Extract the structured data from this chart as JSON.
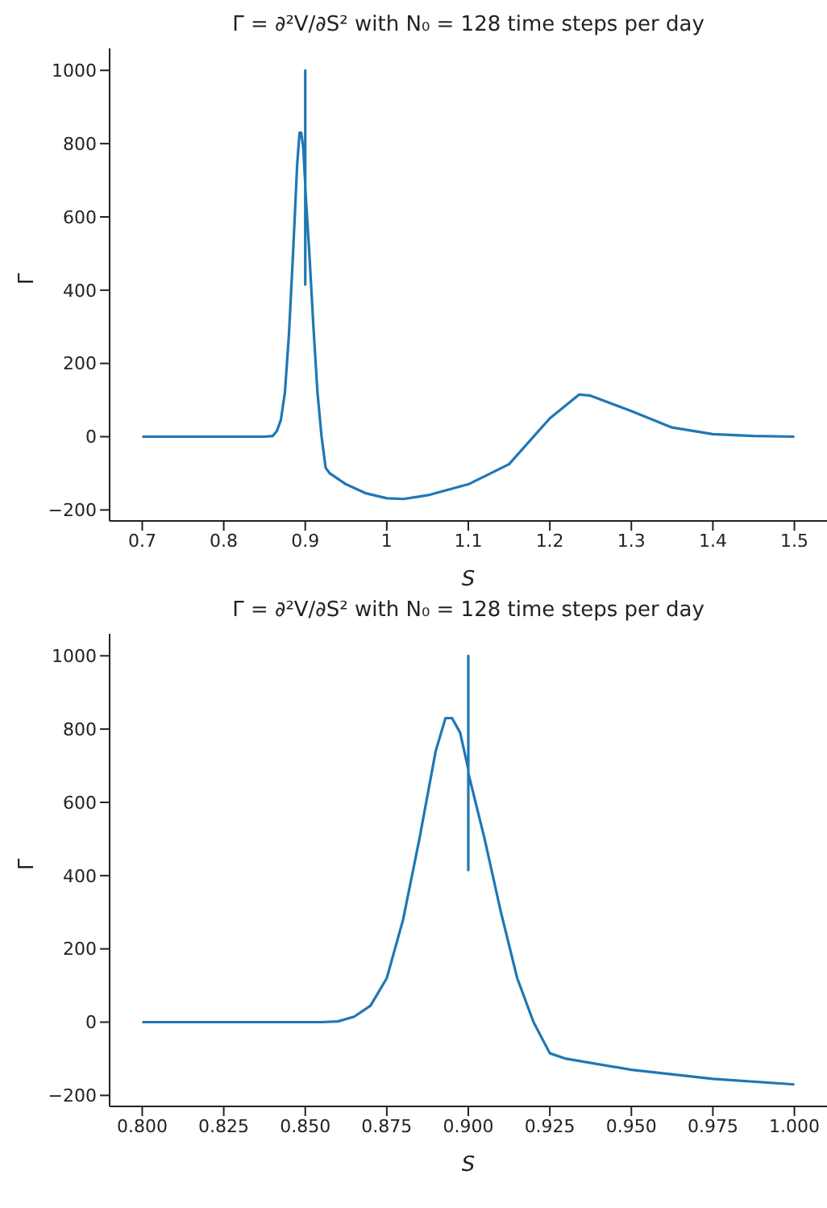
{
  "chart_data": [
    {
      "type": "line",
      "title": "Γ = ∂²V/∂S² with N₀ = 128 time steps per day",
      "xlabel": "S",
      "ylabel": "Γ",
      "xlim": [
        0.66,
        1.54
      ],
      "ylim": [
        -230,
        1060
      ],
      "xticks": [
        0.7,
        0.8,
        0.9,
        1.0,
        1.1,
        1.2,
        1.3,
        1.4,
        1.5
      ],
      "yticks": [
        -200,
        0,
        200,
        400,
        600,
        800,
        1000
      ],
      "marker": "none",
      "line_style": "solid",
      "series": [
        {
          "color": "#1f77b4",
          "x": [
            0.7,
            0.75,
            0.8,
            0.85,
            0.86,
            0.865,
            0.87,
            0.875,
            0.88,
            0.885,
            0.89,
            0.893,
            0.895,
            0.8975,
            0.9,
            0.9,
            0.9,
            0.9,
            0.905,
            0.91,
            0.915,
            0.92,
            0.925,
            0.93,
            0.95,
            0.975,
            1.0,
            1.02,
            1.05,
            1.1,
            1.15,
            1.2,
            1.236,
            1.25,
            1.3,
            1.35,
            1.4,
            1.45,
            1.5
          ],
          "values": [
            0,
            0,
            0,
            0,
            2,
            15,
            45,
            120,
            280,
            500,
            740,
            830,
            830,
            790,
            690,
            1000,
            415,
            680,
            500,
            300,
            120,
            0,
            -85,
            -100,
            -130,
            -155,
            -168,
            -170,
            -160,
            -130,
            -75,
            50,
            115,
            112,
            70,
            25,
            7,
            2,
            0
          ]
        }
      ]
    },
    {
      "type": "line",
      "title": "Γ = ∂²V/∂S² with N₀ = 128 time steps per day",
      "xlabel": "S",
      "ylabel": "Γ",
      "xlim": [
        0.79,
        1.01
      ],
      "ylim": [
        -230,
        1060
      ],
      "xticks": [
        {
          "value": 0.8,
          "label": "0.800"
        },
        {
          "value": 0.825,
          "label": "0.825"
        },
        {
          "value": 0.85,
          "label": "0.850"
        },
        {
          "value": 0.875,
          "label": "0.875"
        },
        {
          "value": 0.9,
          "label": "0.900"
        },
        {
          "value": 0.925,
          "label": "0.925"
        },
        {
          "value": 0.95,
          "label": "0.950"
        },
        {
          "value": 0.975,
          "label": "0.975"
        },
        {
          "value": 1.0,
          "label": "1.000"
        }
      ],
      "yticks": [
        -200,
        0,
        200,
        400,
        600,
        800,
        1000
      ],
      "marker": "none",
      "line_style": "solid",
      "series": [
        {
          "color": "#1f77b4",
          "x": [
            0.8,
            0.82,
            0.84,
            0.855,
            0.86,
            0.865,
            0.87,
            0.875,
            0.88,
            0.885,
            0.89,
            0.893,
            0.895,
            0.8975,
            0.9,
            0.9,
            0.9,
            0.9,
            0.905,
            0.91,
            0.915,
            0.92,
            0.925,
            0.93,
            0.95,
            0.975,
            1.0
          ],
          "values": [
            0,
            0,
            0,
            0,
            2,
            15,
            45,
            120,
            280,
            500,
            740,
            830,
            830,
            790,
            690,
            1000,
            415,
            680,
            500,
            300,
            120,
            0,
            -85,
            -100,
            -130,
            -155,
            -170
          ]
        }
      ]
    }
  ]
}
